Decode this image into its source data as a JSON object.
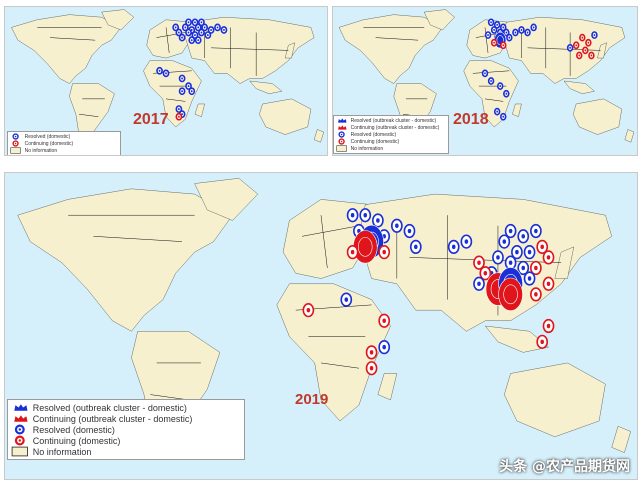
{
  "maps": [
    {
      "year": "2017",
      "legend": [
        "Resolved (domestic)",
        "Continuing (domestic)",
        "No information"
      ],
      "legend_keys": [
        "resolved",
        "continuing",
        "noinfo"
      ]
    },
    {
      "year": "2018",
      "legend": [
        "Resolved (outbreak cluster - domestic)",
        "Continuing (outbreak cluster - domestic)",
        "Resolved (domestic)",
        "Continuing (domestic)",
        "No information"
      ],
      "legend_keys": [
        "resolved_cluster",
        "continuing_cluster",
        "resolved",
        "continuing",
        "noinfo"
      ]
    },
    {
      "year": "2019",
      "legend": [
        "Resolved (outbreak cluster - domestic)",
        "Continuing (outbreak cluster - domestic)",
        "Resolved (domestic)",
        "Continuing (domestic)",
        "No information"
      ],
      "legend_keys": [
        "resolved_cluster",
        "continuing_cluster",
        "resolved",
        "continuing",
        "noinfo"
      ]
    }
  ],
  "watermark": "头条 @农产品期货网",
  "colors": {
    "ocean": "#d5f0fb",
    "land": "#f6f0cf",
    "border": "#111111",
    "resolved": "#1a2fd6",
    "continuing": "#e0151b",
    "year_label": "#c0392b"
  }
}
